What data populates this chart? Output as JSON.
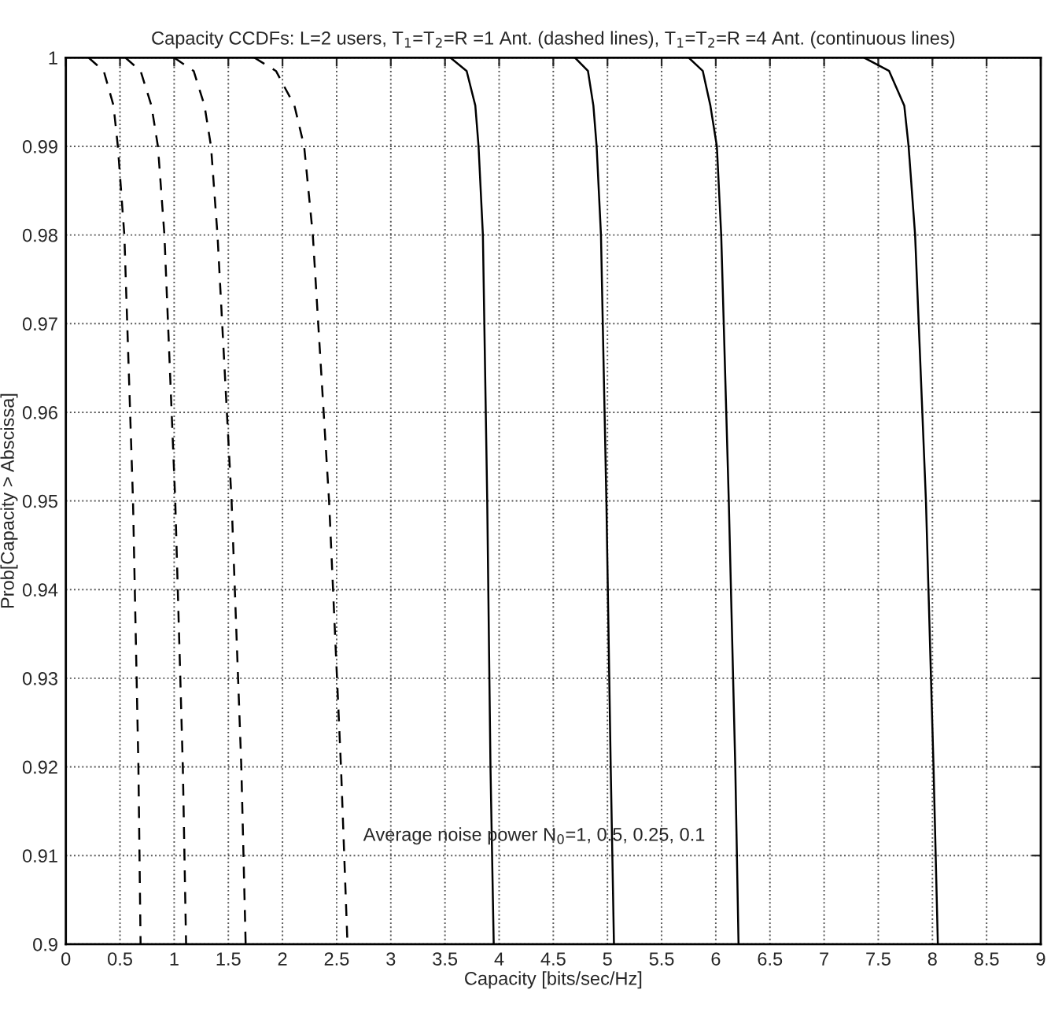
{
  "chart_data": {
    "type": "line",
    "title": "Capacity CCDFs: L=2 users, T$_{1}$=T$_{2}$=R =1 Ant. (dashed lines), T$_{1}$=T$_{2}$=R =4 Ant. (continuous lines)",
    "xlabel": "Capacity [bits/sec/Hz]",
    "ylabel": "Prob[Capacity > Abscissa]",
    "annotations": [
      "Average noise power N$_{0}$=1, 0.5, 0.25, 0.1"
    ],
    "xlim": [
      0,
      9
    ],
    "ylim": [
      0.9,
      1
    ],
    "xticks": [
      0,
      0.5,
      1,
      1.5,
      2,
      2.5,
      3,
      3.5,
      4,
      4.5,
      5,
      5.5,
      6,
      6.5,
      7,
      7.5,
      8,
      8.5,
      9
    ],
    "yticks": [
      0.9,
      0.91,
      0.92,
      0.93,
      0.94,
      0.95,
      0.96,
      0.97,
      0.98,
      0.99,
      1
    ],
    "grid": true,
    "series": [
      {
        "color": "#000000",
        "line_style": "dashed",
        "x": [
          0.21,
          0.35,
          0.44,
          0.48,
          0.54,
          0.62,
          0.67,
          0.69
        ],
        "values": [
          1,
          0.9985,
          0.9946,
          0.99,
          0.98,
          0.95,
          0.92,
          0.9
        ]
      },
      {
        "color": "#000000",
        "line_style": "dashed",
        "x": [
          0.55,
          0.69,
          0.79,
          0.85,
          0.91,
          1.01,
          1.08,
          1.11
        ],
        "values": [
          1,
          0.9985,
          0.9946,
          0.99,
          0.98,
          0.95,
          0.92,
          0.9
        ]
      },
      {
        "color": "#000000",
        "line_style": "dashed",
        "x": [
          1.0,
          1.18,
          1.28,
          1.34,
          1.4,
          1.53,
          1.62,
          1.66
        ],
        "values": [
          1,
          0.9985,
          0.9946,
          0.99,
          0.98,
          0.95,
          0.92,
          0.9
        ]
      },
      {
        "color": "#000000",
        "line_style": "dashed",
        "x": [
          1.74,
          1.94,
          2.11,
          2.2,
          2.28,
          2.43,
          2.54,
          2.6
        ],
        "values": [
          1,
          0.9985,
          0.9946,
          0.99,
          0.98,
          0.95,
          0.92,
          0.9
        ]
      },
      {
        "color": "#000000",
        "line_style": "solid",
        "x": [
          3.55,
          3.7,
          3.78,
          3.81,
          3.85,
          3.89,
          3.92,
          3.95
        ],
        "values": [
          1,
          0.9985,
          0.9946,
          0.99,
          0.98,
          0.95,
          0.92,
          0.9
        ]
      },
      {
        "color": "#000000",
        "line_style": "solid",
        "x": [
          4.7,
          4.82,
          4.87,
          4.9,
          4.94,
          4.99,
          5.03,
          5.06
        ],
        "values": [
          1,
          0.9985,
          0.9946,
          0.99,
          0.98,
          0.95,
          0.92,
          0.9
        ]
      },
      {
        "color": "#000000",
        "line_style": "solid",
        "x": [
          5.75,
          5.88,
          5.95,
          6.01,
          6.05,
          6.12,
          6.18,
          6.21
        ],
        "values": [
          1,
          0.9985,
          0.9946,
          0.99,
          0.98,
          0.95,
          0.92,
          0.9
        ]
      },
      {
        "color": "#000000",
        "line_style": "solid",
        "x": [
          7.37,
          7.6,
          7.74,
          7.78,
          7.84,
          7.94,
          8.01,
          8.05
        ],
        "values": [
          1,
          0.9985,
          0.9946,
          0.99,
          0.98,
          0.95,
          0.92,
          0.9
        ]
      }
    ]
  }
}
